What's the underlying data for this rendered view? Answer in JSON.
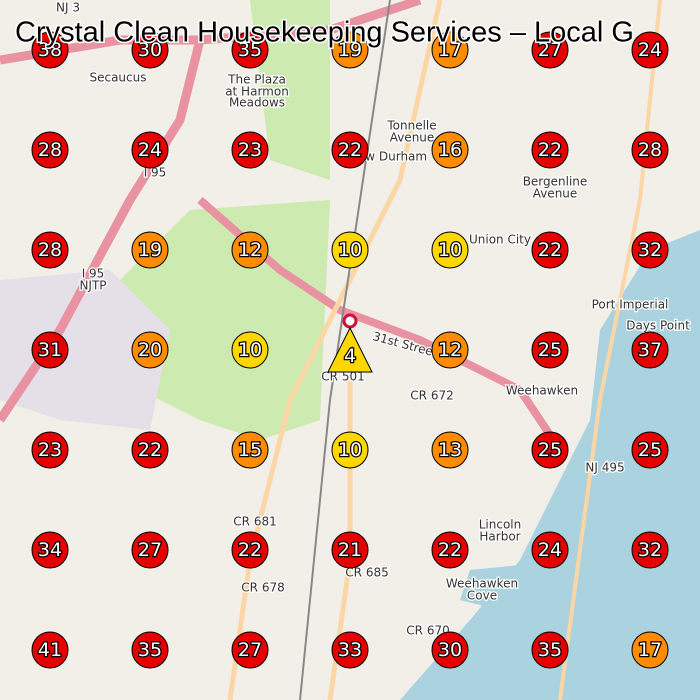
{
  "header": {
    "title": "Crystal Clean Housekeeping Services – Local G"
  },
  "grid": {
    "rows": [
      [
        38,
        30,
        35,
        19,
        17,
        27,
        24
      ],
      [
        28,
        24,
        23,
        22,
        16,
        22,
        28
      ],
      [
        28,
        19,
        12,
        10,
        10,
        22,
        32
      ],
      [
        31,
        20,
        10,
        4,
        12,
        25,
        37
      ],
      [
        23,
        22,
        15,
        10,
        13,
        25,
        25
      ],
      [
        34,
        27,
        22,
        21,
        22,
        24,
        32
      ],
      [
        41,
        35,
        27,
        33,
        30,
        35,
        17
      ]
    ]
  },
  "map_labels": [
    "NJ 3",
    "Secaucus",
    "The Plaza",
    "at Harmon",
    "Meadows",
    "Tonnelle",
    "Avenue",
    "New Durham",
    "I 95",
    "Union City",
    "Bergenline",
    "Avenue",
    "I 95",
    "NJTP",
    "Port Imperial",
    "Days Point",
    "31st Street",
    "CR 501",
    "CR 672",
    "Weehawken",
    "NJ 495",
    "Lincoln",
    "Harbor",
    "CR 681",
    "CR 685",
    "CR 678",
    "Weehawken",
    "Cove",
    "CR 670"
  ]
}
